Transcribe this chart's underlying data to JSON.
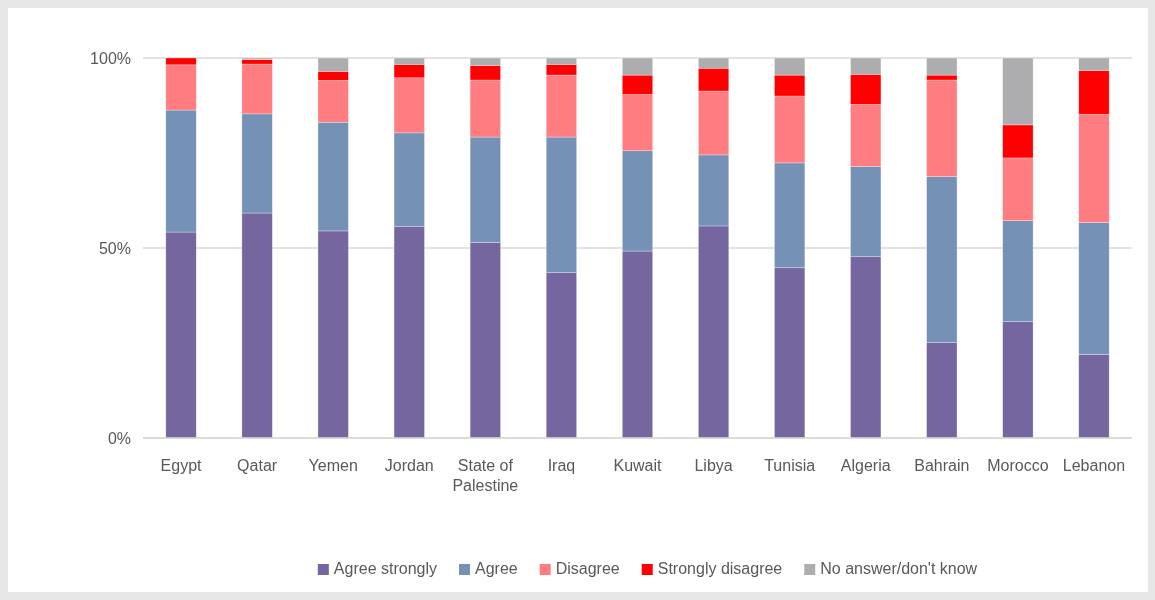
{
  "chart_data": {
    "type": "bar",
    "stacked": true,
    "categories": [
      "Egypt",
      "Qatar",
      "Yemen",
      "Jordan",
      "State of Palestine",
      "Iraq",
      "Kuwait",
      "Libya",
      "Tunisia",
      "Algeria",
      "Bahrain",
      "Morocco",
      "Lebanon"
    ],
    "series": [
      {
        "name": "Agree strongly",
        "color": "#7566a0",
        "values": [
          54.2,
          59.2,
          54.5,
          55.6,
          51.5,
          43.5,
          49.2,
          55.8,
          44.8,
          47.7,
          25.1,
          30.6,
          22.0
        ]
      },
      {
        "name": "Agree",
        "color": "#7591b6",
        "values": [
          32.1,
          26.1,
          28.6,
          24.7,
          27.7,
          35.7,
          26.4,
          18.7,
          27.6,
          23.8,
          43.7,
          26.6,
          34.7
        ]
      },
      {
        "name": "Disagree",
        "color": "#ff7c80",
        "values": [
          11.9,
          13.1,
          11.0,
          14.5,
          15.0,
          16.3,
          14.8,
          16.8,
          17.6,
          16.3,
          25.4,
          16.5,
          28.5
        ]
      },
      {
        "name": "Strongly disagree",
        "color": "#ff0000",
        "values": [
          1.8,
          1.2,
          2.4,
          3.5,
          3.8,
          2.8,
          5.1,
          6.0,
          5.5,
          7.9,
          1.3,
          8.7,
          11.5
        ]
      },
      {
        "name": "No answer/don't know",
        "color": "#adadb0",
        "values": [
          0,
          0.4,
          3.5,
          1.7,
          2.0,
          1.7,
          4.5,
          2.7,
          4.5,
          4.3,
          4.5,
          17.6,
          3.3
        ]
      }
    ],
    "ylim": [
      0,
      100
    ],
    "yticks": [
      {
        "value": 0,
        "label": "0%"
      },
      {
        "value": 50,
        "label": "50%"
      },
      {
        "value": 100,
        "label": "100%"
      }
    ],
    "grid": "y",
    "legend": "bottom"
  }
}
